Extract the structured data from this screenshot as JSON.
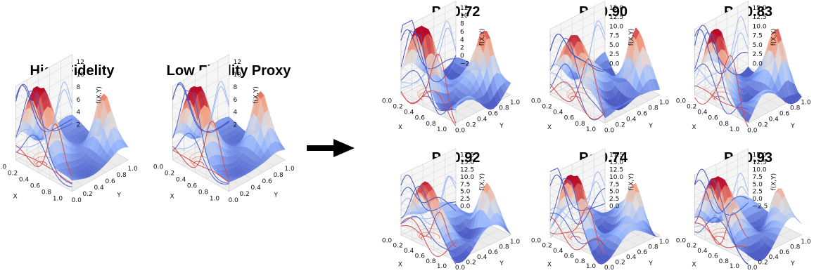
{
  "chart_data": [
    {
      "type": "surface3d",
      "title": "High Fidelity",
      "xlabel": "X",
      "ylabel": "Y",
      "zlabel": "f(X,Y)",
      "x_ticks": [
        "0.0",
        "0.2",
        "0.4",
        "0.6",
        "0.8",
        "1.0"
      ],
      "y_ticks": [
        "0.0",
        "0.2",
        "0.4",
        "0.6",
        "0.8",
        "1.0"
      ],
      "z_ticks": [
        "2",
        "4",
        "6",
        "8",
        "10",
        "12"
      ],
      "colormap": "coolwarm"
    },
    {
      "type": "surface3d",
      "title": "Low Fidelity Proxy",
      "xlabel": "X",
      "ylabel": "Y",
      "zlabel": "f(X,Y)",
      "x_ticks": [
        "0.0",
        "0.2",
        "0.4",
        "0.6",
        "0.8",
        "1.0"
      ],
      "y_ticks": [
        "0.0",
        "0.2",
        "0.4",
        "0.6",
        "0.8",
        "1.0"
      ],
      "z_ticks": [
        "2",
        "4",
        "6",
        "8",
        "10",
        "12"
      ],
      "colormap": "coolwarm"
    },
    {
      "type": "surface3d",
      "title": "Pc 0.72",
      "xlabel": "X",
      "ylabel": "Y",
      "zlabel": "f(X,Y)",
      "x_ticks": [
        "0.0",
        "0.2",
        "0.4",
        "0.6",
        "0.8",
        "1.0"
      ],
      "y_ticks": [
        "0.0",
        "0.2",
        "0.4",
        "0.6",
        "0.8",
        "1.0"
      ],
      "z_ticks": [
        "−2",
        "0",
        "2",
        "4",
        "6",
        "8",
        "10",
        "12"
      ],
      "colormap": "coolwarm"
    },
    {
      "type": "surface3d",
      "title": "Pc 0.90",
      "xlabel": "X",
      "ylabel": "Y",
      "zlabel": "f(X,Y)",
      "x_ticks": [
        "0.0",
        "0.2",
        "0.4",
        "0.6",
        "0.8",
        "1.0"
      ],
      "y_ticks": [
        "0.0",
        "0.2",
        "0.4",
        "0.6",
        "0.8",
        "1.0"
      ],
      "z_ticks": [
        "0.0",
        "2.5",
        "5.0",
        "7.5",
        "10.0",
        "12.5",
        "15.0"
      ],
      "colormap": "coolwarm"
    },
    {
      "type": "surface3d",
      "title": "Pc 0.83",
      "xlabel": "X",
      "ylabel": "Y",
      "zlabel": "f(X,Y)",
      "x_ticks": [
        "0.0",
        "0.2",
        "0.4",
        "0.6",
        "0.8",
        "1.0"
      ],
      "y_ticks": [
        "0.0",
        "0.2",
        "0.4",
        "0.6",
        "0.8",
        "1.0"
      ],
      "z_ticks": [
        "0.0",
        "2.5",
        "5.0",
        "7.5",
        "10.0",
        "12.5",
        "15.0"
      ],
      "colormap": "coolwarm"
    },
    {
      "type": "surface3d",
      "title": "Pc 0.92",
      "xlabel": "X",
      "ylabel": "Y",
      "zlabel": "f(X,Y)",
      "x_ticks": [
        "0.0",
        "0.2",
        "0.4",
        "0.6",
        "0.8",
        "1.0"
      ],
      "y_ticks": [
        "0.0",
        "0.2",
        "0.4",
        "0.6",
        "0.8",
        "1.0"
      ],
      "z_ticks": [
        "0.0",
        "2.5",
        "5.0",
        "7.5",
        "10.0",
        "12.5",
        "15.0",
        "17.5"
      ],
      "colormap": "coolwarm"
    },
    {
      "type": "surface3d",
      "title": "Pc 0.74",
      "xlabel": "X",
      "ylabel": "Y",
      "zlabel": "f(X,Y)",
      "x_ticks": [
        "0.0",
        "0.2",
        "0.4",
        "0.6",
        "0.8",
        "1.0"
      ],
      "y_ticks": [
        "0.0",
        "0.2",
        "0.4",
        "0.6",
        "0.8",
        "1.0"
      ],
      "z_ticks": [
        "0.0",
        "2.5",
        "5.0",
        "7.5",
        "10.0",
        "12.5",
        "15.0",
        "17.5"
      ],
      "colormap": "coolwarm"
    },
    {
      "type": "surface3d",
      "title": "Pc 0.93",
      "xlabel": "X",
      "ylabel": "Y",
      "zlabel": "f(X,Y)",
      "x_ticks": [
        "0.0",
        "0.2",
        "0.4",
        "0.6",
        "0.8",
        "1.0"
      ],
      "y_ticks": [
        "0.0",
        "0.2",
        "0.4",
        "0.6",
        "0.8",
        "1.0"
      ],
      "z_ticks": [
        "−2.5",
        "0.0",
        "2.5",
        "5.0",
        "7.5",
        "10.0",
        "12.5",
        "15.0"
      ],
      "colormap": "coolwarm"
    }
  ],
  "colors": {
    "arrow": "#000000",
    "grid": "#d0d0d0",
    "pane": "#f2f2f2"
  }
}
